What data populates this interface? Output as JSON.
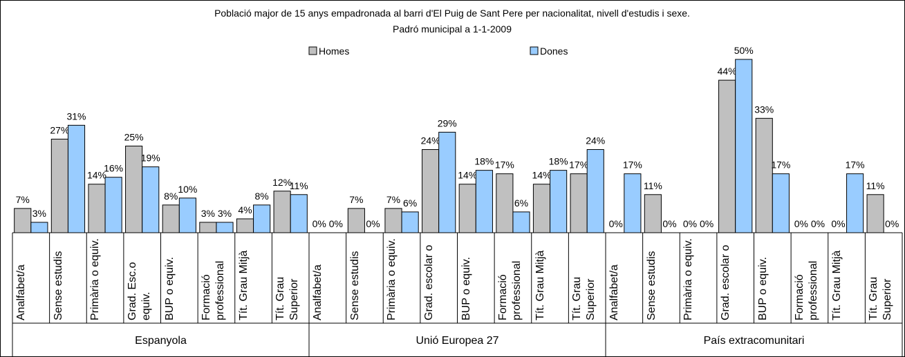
{
  "chart_data": {
    "type": "bar",
    "title": "Població major de 15 anys empadronada al barri d'El Puig de Sant Pere per nacionalitat, nivell d'estudis i sexe.",
    "subtitle": "Padró municipal a 1-1-2009",
    "groups": [
      "Espanyola",
      "Unió Europea 27",
      "País extracomunitari"
    ],
    "categories": [
      "Analfabet/a",
      "Sense estudis",
      "Primària o equiv.",
      "Grad. Esc.o equiv.",
      "BUP o equiv.",
      "Formació professional",
      "Tít. Grau Mitjà",
      "Tít. Grau Superior",
      "Analfabet/a",
      "Sense estudis",
      "Primària o equiv.",
      "Grad. escolar o",
      "BUP o equiv.",
      "Formació professional",
      "Tít. Grau Mitjà",
      "Tít. Grau Superior",
      "Analfabet/a",
      "Sense estudis",
      "Primària o equiv.",
      "Grad. escolar o",
      "BUP o equiv.",
      "Formació professional",
      "Tít. Grau Mitjà",
      "Tít. Grau Superior"
    ],
    "series": [
      {
        "name": "Homes",
        "color": "#c0c0c0",
        "values": [
          7,
          27,
          14,
          25,
          8,
          3,
          4,
          12,
          0,
          7,
          7,
          24,
          14,
          17,
          14,
          17,
          0,
          11,
          0,
          44,
          33,
          0,
          0,
          11
        ],
        "value_labels": [
          "7%",
          "27%",
          "14%",
          "25%",
          "8%",
          "3%",
          "4%",
          "12%",
          "0%",
          "7%",
          "7%",
          "24%",
          "14%",
          "17%",
          "14%",
          "17%",
          "0%",
          "11%",
          "0%",
          "44%",
          "33%",
          "0%",
          "0%",
          "11%"
        ]
      },
      {
        "name": "Dones",
        "color": "#99ccff",
        "values": [
          3,
          31,
          16,
          19,
          10,
          3,
          8,
          11,
          0,
          0,
          6,
          29,
          18,
          6,
          18,
          24,
          17,
          0,
          0,
          50,
          17,
          0,
          17,
          0
        ],
        "value_labels": [
          "3%",
          "31%",
          "16%",
          "19%",
          "10%",
          "3%",
          "8%",
          "11%",
          "0%",
          "0%",
          "6%",
          "29%",
          "18%",
          "6%",
          "18%",
          "24%",
          "17%",
          "0%",
          "0%",
          "50%",
          "17%",
          "0%",
          "17%",
          "0%"
        ]
      }
    ],
    "legend": "top"
  }
}
